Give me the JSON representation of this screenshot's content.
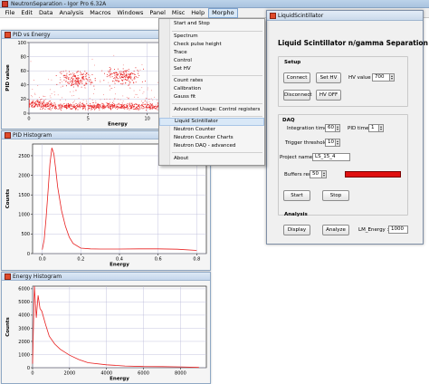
{
  "app": {
    "title": "NeutronSeparation - Igor Pro 6.32A"
  },
  "menubar": {
    "items": [
      "File",
      "Edit",
      "Data",
      "Analysis",
      "Macros",
      "Windows",
      "Panel",
      "Misc",
      "Help",
      "Morpho"
    ]
  },
  "dropdown": {
    "items": [
      "Start and Stop",
      "Spectrum",
      "Check pulse height",
      "Trace",
      "Control",
      "Set HV",
      "Count rates",
      "Calibration",
      "Gauss fit",
      "Advanced Usage: Control registers",
      "Liquid Scintillator",
      "Neutron Counter",
      "Neutron Counter Charts",
      "Neutron DAQ - advanced",
      "About"
    ],
    "highlighted": "Liquid Scintillator"
  },
  "windows": {
    "pid_energy": {
      "title": "PID vs Energy",
      "ylabel": "PID value",
      "xlabel": "Energy",
      "yticks": [
        "0",
        "20",
        "40",
        "60",
        "80",
        "100"
      ],
      "xticks": [
        "0",
        "5",
        "10"
      ]
    },
    "pid_hist": {
      "title": "PID Histogram",
      "ylabel": "Counts",
      "xlabel": "Energy",
      "yticks": [
        "0",
        "500",
        "1000",
        "1500",
        "2000",
        "2500"
      ],
      "xticks": [
        "0.0",
        "0.2",
        "0.4",
        "0.6",
        "0.8"
      ]
    },
    "energy_hist": {
      "title": "Energy Histogram",
      "ylabel": "Counts",
      "xlabel": "Energy",
      "yticks": [
        "0",
        "1000",
        "2000",
        "3000",
        "4000",
        "5000",
        "6000"
      ],
      "xticks": [
        "0",
        "2000",
        "4000",
        "6000",
        "8000"
      ]
    }
  },
  "panel": {
    "title": "LiquidScintillator",
    "heading": "Liquid Scintillator n/gamma Separation",
    "setup_label": "Setup",
    "connect_label": "Connect",
    "sethv_label": "Set HV",
    "hv_value_label": "HV value",
    "hv_value": "700",
    "disconnect_label": "Disconnect",
    "hvoff_label": "HV OFF",
    "daq_label": "DAQ",
    "integration_label": "Integration time",
    "integration_value": "60",
    "pid_time_label": "PID time",
    "pid_time_value": "1",
    "trigger_label": "Trigger threshold",
    "trigger_value": "10",
    "project_label": "Project name :",
    "project_value": "LS_15_4",
    "buffers_label": "Buffers req:",
    "buffers_value": "50",
    "start_label": "Start",
    "stop_label": "Stop",
    "analysis_label": "Analysis",
    "display_label": "Display",
    "analyze_label": "Analyze",
    "lm_energy_label": "LM_Energy >",
    "lm_energy_value": "1000"
  },
  "colors": {
    "trace": "#e82020",
    "indicator": "#e01010",
    "grid": "#b8b8d8"
  },
  "chart_data": [
    {
      "type": "scatter",
      "x": [
        0.5,
        1,
        2,
        3,
        4,
        5,
        6,
        7,
        8,
        9,
        10,
        11,
        12,
        13,
        14,
        3.5,
        4.0,
        4.5,
        7.5,
        8.0,
        8.5
      ],
      "y": [
        15,
        12,
        10,
        10,
        10,
        10,
        10,
        10,
        10,
        10,
        10,
        10,
        10,
        10,
        10,
        48,
        50,
        47,
        53,
        55,
        52
      ],
      "xlabel": "Energy",
      "ylabel": "PID value",
      "xlim": [
        0,
        15
      ],
      "ylim": [
        0,
        100
      ]
    },
    {
      "type": "line",
      "x": [
        0.0,
        0.01,
        0.02,
        0.03,
        0.04,
        0.05,
        0.06,
        0.07,
        0.08,
        0.1,
        0.12,
        0.14,
        0.16,
        0.2,
        0.25,
        0.3,
        0.4,
        0.5,
        0.6,
        0.7,
        0.8
      ],
      "y": [
        100,
        350,
        900,
        1600,
        2300,
        2700,
        2550,
        2150,
        1700,
        1100,
        700,
        420,
        260,
        140,
        120,
        115,
        115,
        120,
        120,
        110,
        80
      ],
      "xlabel": "Energy",
      "ylabel": "Counts",
      "xlim": [
        -0.05,
        0.85
      ],
      "ylim": [
        0,
        2800
      ]
    },
    {
      "type": "line",
      "x": [
        0,
        100,
        200,
        300,
        400,
        500,
        700,
        900,
        1200,
        1500,
        2000,
        2500,
        3000,
        4000,
        5000,
        6000,
        7000,
        8000,
        9000
      ],
      "y": [
        300,
        6200,
        3800,
        5500,
        4500,
        4300,
        3300,
        2400,
        1800,
        1400,
        950,
        620,
        380,
        220,
        130,
        90,
        80,
        60,
        20
      ],
      "xlabel": "Energy",
      "ylabel": "Counts",
      "xlim": [
        0,
        9400
      ],
      "ylim": [
        0,
        6200
      ]
    }
  ]
}
